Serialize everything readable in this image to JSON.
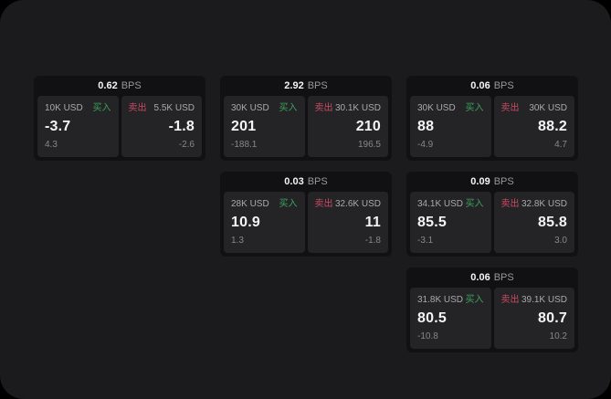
{
  "labels": {
    "bps": "BPS",
    "buy": "买入",
    "sell": "卖出"
  },
  "colors": {
    "buy_green": "#3da35c",
    "sell_red": "#c94a63",
    "page_bg": "#1b1b1d",
    "card_bg": "#111113",
    "panel_bg": "#242427"
  },
  "cards": [
    {
      "bps": "0.62",
      "buy": {
        "amount": "10K USD",
        "value": "-3.7",
        "sub": "4.3"
      },
      "sell": {
        "amount": "5.5K USD",
        "value": "-1.8",
        "sub": "-2.6"
      }
    },
    {
      "bps": "2.92",
      "buy": {
        "amount": "30K USD",
        "value": "201",
        "sub": "-188.1"
      },
      "sell": {
        "amount": "30.1K USD",
        "value": "210",
        "sub": "196.5"
      }
    },
    {
      "bps": "0.06",
      "buy": {
        "amount": "30K USD",
        "value": "88",
        "sub": "-4.9"
      },
      "sell": {
        "amount": "30K USD",
        "value": "88.2",
        "sub": "4.7"
      }
    },
    {
      "bps": "0.03",
      "buy": {
        "amount": "28K USD",
        "value": "10.9",
        "sub": "1.3"
      },
      "sell": {
        "amount": "32.6K USD",
        "value": "11",
        "sub": "-1.8"
      }
    },
    {
      "bps": "0.09",
      "buy": {
        "amount": "34.1K USD",
        "value": "85.5",
        "sub": "-3.1"
      },
      "sell": {
        "amount": "32.8K USD",
        "value": "85.8",
        "sub": "3.0"
      }
    },
    {
      "bps": "0.06",
      "buy": {
        "amount": "31.8K USD",
        "value": "80.5",
        "sub": "-10.8"
      },
      "sell": {
        "amount": "39.1K USD",
        "value": "80.7",
        "sub": "10.2"
      }
    }
  ]
}
